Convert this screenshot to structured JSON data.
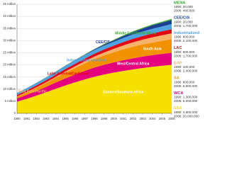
{
  "chart_data": {
    "type": "stacked-area",
    "x": [
      1990,
      1991,
      1992,
      1993,
      1994,
      1995,
      1996,
      1997,
      1998,
      1999,
      2000,
      2001,
      2002,
      2003,
      2004,
      2005,
      2006
    ],
    "xlim": [
      1990,
      2006
    ],
    "xticks": [
      1990,
      1991,
      1992,
      1993,
      1994,
      1995,
      1996,
      1997,
      1998,
      1999,
      2000,
      2001,
      2002,
      2003,
      2004,
      2005,
      2006
    ],
    "ylim": [
      0,
      45
    ],
    "yticks": [
      0,
      {
        "value": 5,
        "label": "5 million"
      },
      {
        "value": 10,
        "label": "10 million"
      },
      {
        "value": 15,
        "label": "15 million"
      },
      {
        "value": 20,
        "label": "20 million"
      },
      {
        "value": 25,
        "label": "25 million"
      },
      {
        "value": 30,
        "label": "30 million"
      },
      {
        "value": 35,
        "label": "35 million"
      },
      {
        "value": 40,
        "label": "40 million"
      },
      {
        "value": 45,
        "label": "45 million"
      }
    ],
    "grid": true,
    "series": [
      {
        "name": "Eastern/Southern Africa",
        "color": "#f5e000",
        "values": [
          4.8,
          6.0,
          7.3,
          8.7,
          10.1,
          11.5,
          12.8,
          14.0,
          15.1,
          16.0,
          16.8,
          17.5,
          18.1,
          18.7,
          19.2,
          19.6,
          20.0
        ]
      },
      {
        "name": "West/Central Africa",
        "color": "#e5007d",
        "values": [
          1.3,
          1.6,
          1.9,
          2.2,
          2.6,
          2.9,
          3.2,
          3.5,
          3.8,
          4.0,
          4.2,
          4.4,
          4.6,
          4.7,
          4.8,
          4.9,
          5.0
        ]
      },
      {
        "name": "South Asia",
        "color": "#f39200",
        "values": [
          0.8,
          1.0,
          1.3,
          1.6,
          1.9,
          2.3,
          2.7,
          3.1,
          3.5,
          3.9,
          4.2,
          4.5,
          4.8,
          5.0,
          5.2,
          5.4,
          5.6
        ]
      },
      {
        "name": "East Asia/Pacific",
        "color": "#f6b26b",
        "values": [
          0.1,
          0.15,
          0.2,
          0.3,
          0.4,
          0.55,
          0.7,
          0.85,
          1.0,
          1.2,
          1.4,
          1.6,
          1.8,
          2.0,
          2.15,
          2.3,
          2.4
        ]
      },
      {
        "name": "Latin America/Caribbean",
        "color": "#e30613",
        "values": [
          0.6,
          0.7,
          0.8,
          0.85,
          0.9,
          1.0,
          1.05,
          1.1,
          1.2,
          1.25,
          1.3,
          1.4,
          1.45,
          1.5,
          1.6,
          1.65,
          1.7
        ]
      },
      {
        "name": "Industrialized countries",
        "color": "#4fa3e0",
        "values": [
          0.8,
          0.9,
          1.0,
          1.1,
          1.2,
          1.3,
          1.35,
          1.4,
          1.5,
          1.55,
          1.6,
          1.7,
          1.8,
          1.85,
          1.95,
          2.0,
          2.1
        ]
      },
      {
        "name": "CEE/CIS",
        "color": "#1d3f94",
        "values": [
          0.02,
          0.03,
          0.04,
          0.05,
          0.06,
          0.08,
          0.12,
          0.2,
          0.3,
          0.45,
          0.6,
          0.8,
          1.0,
          1.2,
          1.4,
          1.55,
          1.7
        ]
      },
      {
        "name": "Middle East/North Africa",
        "color": "#3aaa35",
        "values": [
          0.03,
          0.04,
          0.05,
          0.06,
          0.08,
          0.1,
          0.12,
          0.14,
          0.17,
          0.2,
          0.23,
          0.27,
          0.3,
          0.34,
          0.38,
          0.42,
          0.46
        ]
      }
    ],
    "panel": [
      {
        "label": "MENA",
        "start": "1990: 30,000",
        "end": "2006: 460,000"
      },
      {
        "label": "CEE/CIS",
        "start": "1990: 20,000",
        "end": "2006: 1,700,000"
      },
      {
        "label": "Industrialized",
        "start": "1990: 800,000",
        "end": "2006: 2,100,000"
      },
      {
        "label": "LAC",
        "start": "1990: 600,000",
        "end": "2006: 1,700,000"
      },
      {
        "label": "EAP",
        "start": "1990: 100,000",
        "end": "2006: 2,400,000"
      },
      {
        "label": "SA",
        "start": "1990: 800,000",
        "end": "2006: 5,600,000"
      },
      {
        "label": "WCA",
        "start": "1990: 1,300,000",
        "end": "2006: 5,000,000"
      },
      {
        "label": "ESA",
        "start": "1990: 4,800,000",
        "end": "2006: 20,000,000"
      }
    ]
  }
}
